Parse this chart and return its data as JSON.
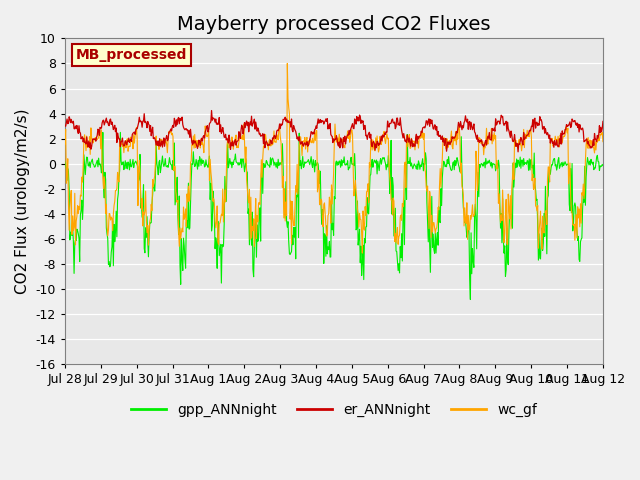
{
  "title": "Mayberry processed CO2 Fluxes",
  "ylabel": "CO2 Flux (urology/m2/s)",
  "ylim": [
    -16,
    10
  ],
  "yticks": [
    -16,
    -14,
    -12,
    -10,
    -8,
    -6,
    -4,
    -2,
    0,
    2,
    4,
    6,
    8,
    10
  ],
  "xtick_labels": [
    "Jul 28",
    "Jul 29",
    "Jul 30",
    "Jul 31",
    "Aug 1",
    "Aug 2",
    "Aug 3",
    "Aug 4",
    "Aug 5",
    "Aug 6",
    "Aug 7",
    "Aug 8",
    "Aug 9",
    "Aug 10",
    "Aug 11",
    "Aug 12"
  ],
  "xtick_positions": [
    0,
    1,
    2,
    3,
    4,
    5,
    6,
    7,
    8,
    9,
    10,
    11,
    12,
    13,
    14,
    15
  ],
  "color_gpp": "#00ee00",
  "color_er": "#cc0000",
  "color_wc": "#ffa500",
  "bg_color": "#f0f0f0",
  "plot_bg_color": "#e8e8e8",
  "legend_box_label": "MB_processed",
  "legend_box_facecolor": "#ffffcc",
  "legend_box_edgecolor": "#aa0000",
  "legend_labels": [
    "gpp_ANNnight",
    "er_ANNnight",
    "wc_gf"
  ],
  "title_fontsize": 14,
  "axis_fontsize": 11,
  "tick_fontsize": 9,
  "n_points": 768,
  "n_days": 15
}
